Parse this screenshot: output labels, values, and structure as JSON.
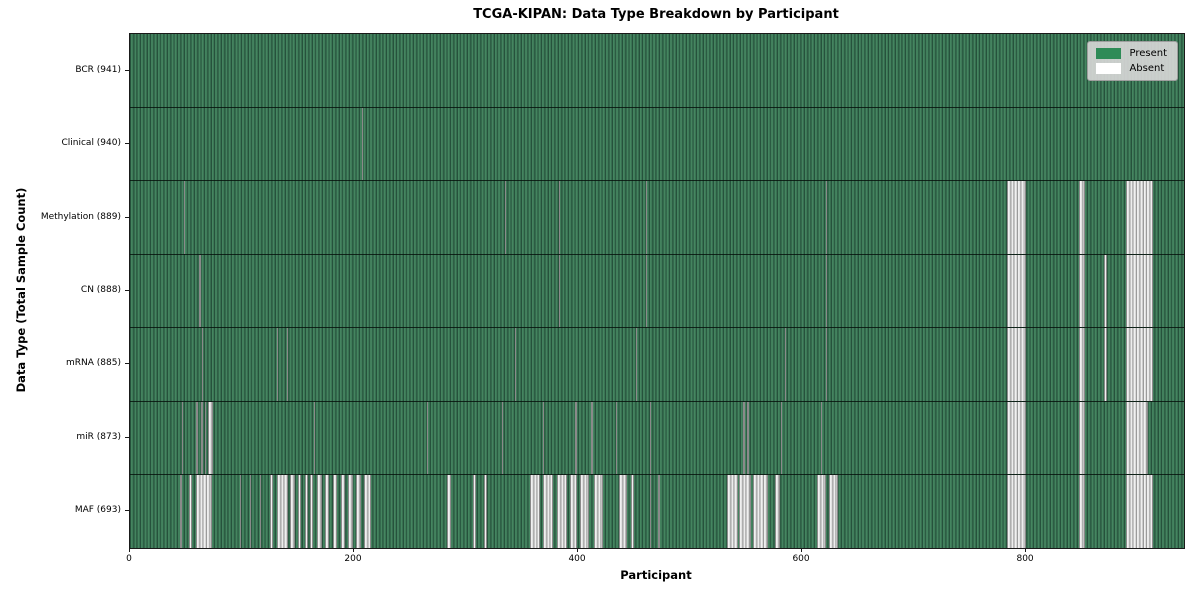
{
  "chart_data": {
    "type": "heatmap",
    "title": "TCGA-KIPAN: Data Type Breakdown by Participant",
    "xlabel": "Participant",
    "ylabel": "Data Type (Total Sample Count)",
    "x_ticks": [
      0,
      200,
      400,
      600,
      800
    ],
    "x_max": 941,
    "total_participants": 941,
    "legend": {
      "position": "upper right",
      "items": [
        {
          "label": "Present",
          "color": "#2e8b57"
        },
        {
          "label": "Absent",
          "color": "#ffffff"
        }
      ]
    },
    "rows": [
      {
        "id": "bcr",
        "label": "BCR (941)",
        "data_type": "BCR",
        "present_count": 941,
        "absent_count": 0,
        "absent_runs": []
      },
      {
        "id": "clinical",
        "label": "Clinical (940)",
        "data_type": "Clinical",
        "present_count": 940,
        "absent_count": 1,
        "absent_runs": [
          [
            207,
            208
          ]
        ]
      },
      {
        "id": "methylation",
        "label": "Methylation (889)",
        "data_type": "Methylation",
        "present_count": 889,
        "absent_count": 52,
        "absent_runs": [
          [
            48,
            49
          ],
          [
            335,
            336
          ],
          [
            383,
            384
          ],
          [
            461,
            462
          ],
          [
            621,
            622
          ],
          [
            783,
            800
          ],
          [
            847,
            853
          ],
          [
            889,
            913
          ]
        ]
      },
      {
        "id": "cn",
        "label": "CN (888)",
        "data_type": "CN",
        "present_count": 888,
        "absent_count": 53,
        "absent_runs": [
          [
            62,
            63
          ],
          [
            383,
            384
          ],
          [
            461,
            462
          ],
          [
            621,
            622
          ],
          [
            783,
            800
          ],
          [
            847,
            853
          ],
          [
            870,
            872
          ],
          [
            889,
            913
          ]
        ]
      },
      {
        "id": "mrna",
        "label": "mRNA (885)",
        "data_type": "mRNA",
        "present_count": 885,
        "absent_count": 56,
        "absent_runs": [
          [
            64,
            65
          ],
          [
            131,
            132
          ],
          [
            140,
            141
          ],
          [
            344,
            345
          ],
          [
            452,
            453
          ],
          [
            585,
            586
          ],
          [
            621,
            622
          ],
          [
            783,
            800
          ],
          [
            847,
            853
          ],
          [
            870,
            872
          ],
          [
            889,
            913
          ]
        ]
      },
      {
        "id": "mir",
        "label": "miR (873)",
        "data_type": "miR",
        "present_count": 873,
        "absent_count": 68,
        "absent_runs": [
          [
            46,
            47
          ],
          [
            59,
            61
          ],
          [
            63,
            65
          ],
          [
            67,
            68
          ],
          [
            70,
            74
          ],
          [
            164,
            165
          ],
          [
            265,
            266
          ],
          [
            332,
            333
          ],
          [
            369,
            370
          ],
          [
            397,
            399
          ],
          [
            412,
            413
          ],
          [
            434,
            435
          ],
          [
            464,
            465
          ],
          [
            547,
            549
          ],
          [
            551,
            553
          ],
          [
            581,
            582
          ],
          [
            617,
            618
          ],
          [
            783,
            800
          ],
          [
            847,
            853
          ],
          [
            889,
            909
          ]
        ]
      },
      {
        "id": "maf",
        "label": "MAF (693)",
        "data_type": "MAF",
        "present_count": 693,
        "absent_count": 248,
        "absent_runs": [
          [
            45,
            46
          ],
          [
            53,
            55
          ],
          [
            59,
            73
          ],
          [
            98,
            99
          ],
          [
            107,
            108
          ],
          [
            116,
            117
          ],
          [
            125,
            128
          ],
          [
            131,
            141
          ],
          [
            143,
            147
          ],
          [
            150,
            153
          ],
          [
            156,
            159
          ],
          [
            161,
            163
          ],
          [
            167,
            171
          ],
          [
            174,
            178
          ],
          [
            181,
            185
          ],
          [
            188,
            192
          ],
          [
            195,
            199
          ],
          [
            202,
            206
          ],
          [
            209,
            215
          ],
          [
            283,
            287
          ],
          [
            306,
            309
          ],
          [
            316,
            319
          ],
          [
            357,
            366
          ],
          [
            369,
            378
          ],
          [
            381,
            390
          ],
          [
            393,
            399
          ],
          [
            402,
            410
          ],
          [
            414,
            422
          ],
          [
            437,
            444
          ],
          [
            447,
            450
          ],
          [
            464,
            465
          ],
          [
            471,
            473
          ],
          [
            533,
            543
          ],
          [
            544,
            554
          ],
          [
            556,
            570
          ],
          [
            576,
            580
          ],
          [
            613,
            621
          ],
          [
            624,
            632
          ],
          [
            783,
            800
          ],
          [
            847,
            853
          ],
          [
            889,
            913
          ]
        ]
      }
    ]
  },
  "colors": {
    "present_green": "#2e8b57",
    "absent_white": "#ffffff",
    "legend_background": "#d6d6d6",
    "spine": "#1a1a1a"
  }
}
